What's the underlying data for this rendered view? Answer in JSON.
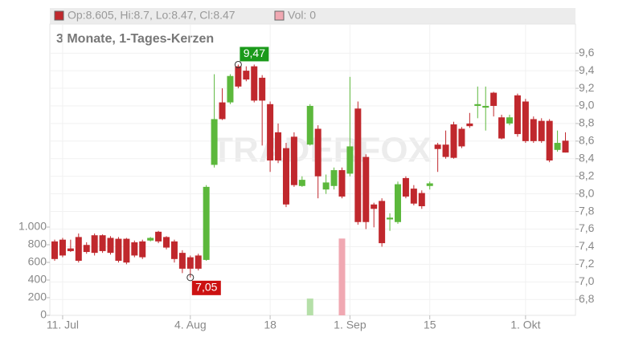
{
  "chart_data": {
    "type": "candlestick",
    "title": "3 Monate, 1-Tages-Kerzen",
    "legend_ohlc": "Op:8.605, Hi:8.7, Lo:8.47, Cl:8.47",
    "legend_volume": "Vol: 0",
    "watermark": "TRADERFOX",
    "categories": [
      null,
      "11. Jul",
      null,
      null,
      null,
      null,
      null,
      null,
      null,
      null,
      null,
      null,
      null,
      null,
      null,
      null,
      null,
      "4. Aug",
      null,
      null,
      null,
      null,
      null,
      null,
      null,
      null,
      null,
      "18",
      null,
      null,
      null,
      null,
      null,
      null,
      null,
      null,
      null,
      "1. Sep",
      null,
      null,
      null,
      null,
      null,
      null,
      null,
      null,
      null,
      "15",
      null,
      null,
      null,
      null,
      null,
      null,
      null,
      null,
      null,
      null,
      null,
      "1. Okt",
      null,
      null,
      null,
      null,
      null
    ],
    "open": [
      7.46,
      7.48,
      7.38,
      7.51,
      7.42,
      7.53,
      7.53,
      7.5,
      7.49,
      7.49,
      7.45,
      7.46,
      7.47,
      7.57,
      7.51,
      7.46,
      7.33,
      7.28,
      7.3,
      7.25,
      8.33,
      9.04,
      9.04,
      9.45,
      9.4,
      9.45,
      9.32,
      9.02,
      8.7,
      8.52,
      8.65,
      8.09,
      8.56,
      8.74,
      8.05,
      8.09,
      8.27,
      8.23,
      8.97,
      8.42,
      7.88,
      7.92,
      7.71,
      7.68,
      8.18,
      8.06,
      8.01,
      8.09,
      8.56,
      8.56,
      8.79,
      8.74,
      8.8,
      9.0,
      8.98,
      9.15,
      8.87,
      8.8,
      9.12,
      9.05,
      8.85,
      8.83,
      8.83,
      8.5,
      8.605
    ],
    "high": [
      7.48,
      7.5,
      7.48,
      7.55,
      7.45,
      7.55,
      7.54,
      7.52,
      7.51,
      7.5,
      7.47,
      7.48,
      7.51,
      7.58,
      7.52,
      7.48,
      7.36,
      7.3,
      7.32,
      8.1,
      9.36,
      9.2,
      9.36,
      9.47,
      9.45,
      9.47,
      9.35,
      9.05,
      8.8,
      8.58,
      8.7,
      8.2,
      9.02,
      8.78,
      8.22,
      8.3,
      8.3,
      9.33,
      9.05,
      8.45,
      7.9,
      7.95,
      7.78,
      8.14,
      8.2,
      8.1,
      8.04,
      8.14,
      8.58,
      8.72,
      8.82,
      8.76,
      8.92,
      9.22,
      9.22,
      9.16,
      8.9,
      8.9,
      9.14,
      9.08,
      8.88,
      8.86,
      8.85,
      8.72,
      8.7
    ],
    "low": [
      7.24,
      7.28,
      7.34,
      7.22,
      7.32,
      7.3,
      7.33,
      7.31,
      7.22,
      7.2,
      7.28,
      7.26,
      7.46,
      7.44,
      7.37,
      7.22,
      7.1,
      7.05,
      7.13,
      7.24,
      8.3,
      8.84,
      9.02,
      9.2,
      9.28,
      9.04,
      8.55,
      8.25,
      8.35,
      7.85,
      8.08,
      8.08,
      8.55,
      7.95,
      8.0,
      8.05,
      7.95,
      8.2,
      7.65,
      7.6,
      7.62,
      7.4,
      7.58,
      7.66,
      7.95,
      7.87,
      7.83,
      8.05,
      8.25,
      8.4,
      8.4,
      8.52,
      8.75,
      8.86,
      8.72,
      8.88,
      8.62,
      8.78,
      8.65,
      8.58,
      8.58,
      8.58,
      8.36,
      8.48,
      8.47
    ],
    "close": [
      7.26,
      7.3,
      7.35,
      7.24,
      7.34,
      7.33,
      7.35,
      7.33,
      7.24,
      7.22,
      7.3,
      7.28,
      7.5,
      7.46,
      7.39,
      7.26,
      7.15,
      7.15,
      7.15,
      8.08,
      8.85,
      8.85,
      9.34,
      9.22,
      9.3,
      9.06,
      9.06,
      8.38,
      8.38,
      7.88,
      8.1,
      8.16,
      9.0,
      8.2,
      8.13,
      8.27,
      7.97,
      8.54,
      7.68,
      7.68,
      7.83,
      7.44,
      7.73,
      8.11,
      7.97,
      7.89,
      7.86,
      8.12,
      8.51,
      8.42,
      8.41,
      8.54,
      8.77,
      9.02,
      9.0,
      9.0,
      8.63,
      8.87,
      8.68,
      8.6,
      8.6,
      8.6,
      8.38,
      8.58,
      8.47
    ],
    "volume": [
      0,
      0,
      0,
      0,
      0,
      0,
      0,
      0,
      0,
      0,
      0,
      0,
      0,
      0,
      0,
      0,
      0,
      0,
      0,
      0,
      0,
      0,
      0,
      0,
      0,
      0,
      0,
      0,
      0,
      0,
      0,
      0,
      190,
      0,
      0,
      0,
      870,
      0,
      0,
      0,
      0,
      0,
      0,
      0,
      0,
      0,
      0,
      0,
      0,
      0,
      0,
      0,
      0,
      0,
      0,
      0,
      0,
      0,
      0,
      0,
      0,
      0,
      0,
      0,
      0
    ],
    "up_color": "#5cb83c",
    "down_color": "#c0282d",
    "volume_up_color": "#b5dfa8",
    "volume_down_color": "#f0a8b2",
    "ylim": [
      6.62,
      9.93
    ],
    "yticks": [
      {
        "value": 6.8,
        "label": "6,8"
      },
      {
        "value": 7.0,
        "label": "7,0"
      },
      {
        "value": 7.2,
        "label": "7,2"
      },
      {
        "value": 7.4,
        "label": "7,4"
      },
      {
        "value": 7.6,
        "label": "7,6"
      },
      {
        "value": 7.8,
        "label": "7,8"
      },
      {
        "value": 8.0,
        "label": "8,0"
      },
      {
        "value": 8.2,
        "label": "8,2"
      },
      {
        "value": 8.4,
        "label": "8,4"
      },
      {
        "value": 8.6,
        "label": "8,6"
      },
      {
        "value": 8.8,
        "label": "8,8"
      },
      {
        "value": 9.0,
        "label": "9,0"
      },
      {
        "value": 9.2,
        "label": "9,2"
      },
      {
        "value": 9.4,
        "label": "9,4"
      },
      {
        "value": 9.6,
        "label": "9,6"
      }
    ],
    "y2lim": [
      0,
      3300
    ],
    "y2ticks": [
      0,
      200,
      400,
      600,
      800,
      {
        "value": 1000,
        "label": "1.000"
      }
    ],
    "max_label": {
      "value": 9.47,
      "label": "9,47"
    },
    "min_label": {
      "value": 7.05,
      "label": "7,05"
    },
    "grid": true
  }
}
